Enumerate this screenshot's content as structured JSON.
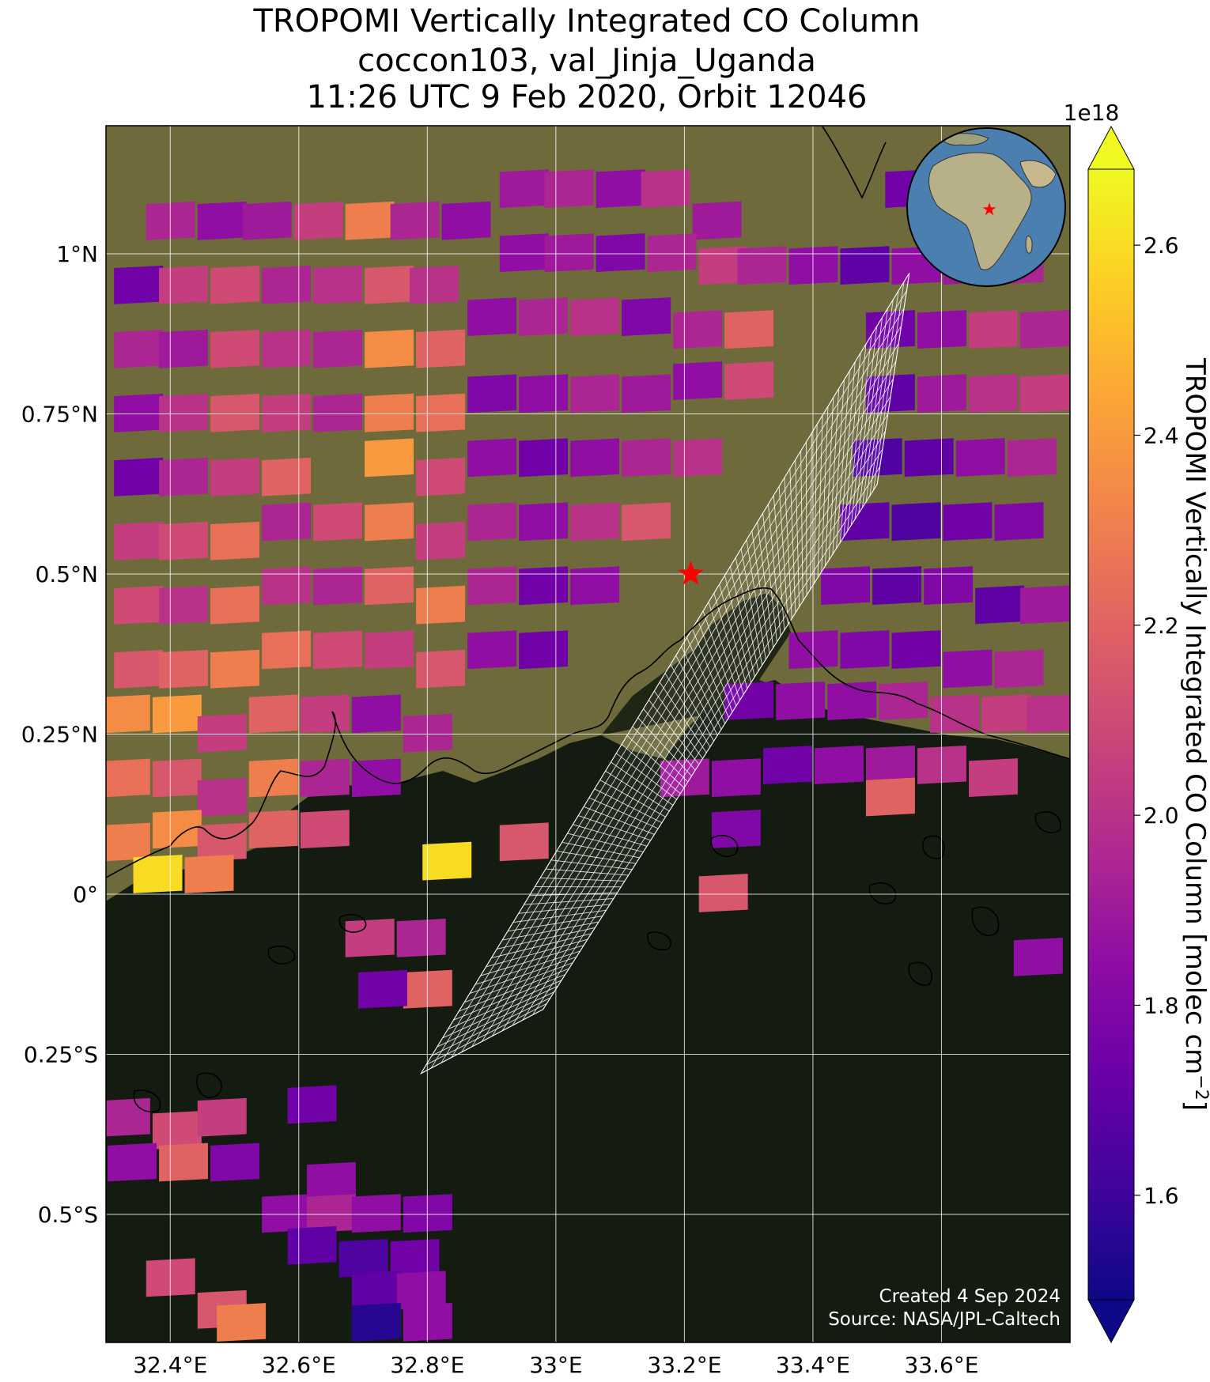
{
  "title": {
    "line1": "TROPOMI Vertically Integrated CO Column",
    "line2": "coccon103, val_Jinja_Uganda",
    "line3": "11:26 UTC 9 Feb 2020, Orbit 12046"
  },
  "map": {
    "lon_range": [
      32.3,
      33.8
    ],
    "lat_range": [
      -0.7,
      1.2
    ],
    "lon_ticks": [
      {
        "value": 32.4,
        "label": "32.4°E"
      },
      {
        "value": 32.6,
        "label": "32.6°E"
      },
      {
        "value": 32.8,
        "label": "32.8°E"
      },
      {
        "value": 33.0,
        "label": "33°E"
      },
      {
        "value": 33.2,
        "label": "33.2°E"
      },
      {
        "value": 33.4,
        "label": "33.4°E"
      },
      {
        "value": 33.6,
        "label": "33.6°E"
      }
    ],
    "lat_ticks": [
      {
        "value": 1.0,
        "label": "1°N"
      },
      {
        "value": 0.75,
        "label": "0.75°N"
      },
      {
        "value": 0.5,
        "label": "0.5°N"
      },
      {
        "value": 0.25,
        "label": "0.25°N"
      },
      {
        "value": 0.0,
        "label": "0°"
      },
      {
        "value": -0.25,
        "label": "0.25°S"
      },
      {
        "value": -0.5,
        "label": "0.5°S"
      }
    ],
    "site": {
      "name": "val_Jinja_Uganda",
      "lon": 33.21,
      "lat": 0.5
    },
    "colors": {
      "land": "#6e6a3c",
      "lake": "#141c12",
      "grid": "#ffffff",
      "marker": "#ff0000"
    }
  },
  "credits": {
    "line1": "Created 4 Sep 2024",
    "line2": "Source: NASA/JPL-Caltech"
  },
  "colorbar": {
    "label": "TROPOMI Vertically Integrated CO Column [molec cm",
    "label_sup": "−2",
    "label_end": "]",
    "exponent": "1e18",
    "range": [
      1.49,
      2.68
    ],
    "colormap": "plasma",
    "ticks": [
      {
        "value": 1.6,
        "label": "1.6"
      },
      {
        "value": 1.8,
        "label": "1.8"
      },
      {
        "value": 2.0,
        "label": "2.0"
      },
      {
        "value": 2.2,
        "label": "2.2"
      },
      {
        "value": 2.4,
        "label": "2.4"
      },
      {
        "value": 2.6,
        "label": "2.6"
      }
    ]
  },
  "chart_data": {
    "type": "heatmap",
    "title": "TROPOMI Vertically Integrated CO Column",
    "xlabel": "",
    "ylabel": "",
    "xlim": [
      32.3,
      33.8
    ],
    "ylim": [
      -0.7,
      1.2
    ],
    "x_step": 0.075,
    "y_step": 0.055,
    "value_units": "1e18 molec cm−2",
    "cells": [
      [
        32.4,
        1.05,
        1.95
      ],
      [
        32.48,
        1.05,
        1.85
      ],
      [
        32.55,
        1.05,
        1.9
      ],
      [
        32.63,
        1.05,
        2.05
      ],
      [
        32.71,
        1.05,
        2.3
      ],
      [
        32.78,
        1.05,
        1.95
      ],
      [
        32.86,
        1.05,
        1.85
      ],
      [
        32.95,
        1.1,
        1.9
      ],
      [
        33.02,
        1.1,
        1.95
      ],
      [
        33.1,
        1.1,
        1.85
      ],
      [
        33.17,
        1.1,
        2.0
      ],
      [
        33.25,
        1.05,
        1.9
      ],
      [
        33.55,
        1.1,
        1.75
      ],
      [
        32.35,
        0.95,
        1.75
      ],
      [
        32.42,
        0.95,
        2.05
      ],
      [
        32.5,
        0.95,
        2.1
      ],
      [
        32.58,
        0.95,
        1.95
      ],
      [
        32.66,
        0.95,
        2.0
      ],
      [
        32.74,
        0.95,
        2.15
      ],
      [
        32.81,
        0.95,
        2.0
      ],
      [
        32.95,
        1.0,
        1.85
      ],
      [
        33.02,
        1.0,
        1.9
      ],
      [
        33.1,
        1.0,
        1.8
      ],
      [
        33.18,
        1.0,
        1.95
      ],
      [
        33.26,
        0.98,
        2.05
      ],
      [
        33.32,
        0.98,
        1.95
      ],
      [
        33.4,
        0.98,
        1.85
      ],
      [
        33.48,
        0.98,
        1.7
      ],
      [
        33.56,
        0.98,
        1.85
      ],
      [
        33.64,
        0.98,
        1.9
      ],
      [
        33.72,
        0.98,
        1.95
      ],
      [
        32.35,
        0.85,
        1.95
      ],
      [
        32.42,
        0.85,
        1.9
      ],
      [
        32.5,
        0.85,
        2.1
      ],
      [
        32.58,
        0.85,
        2.0
      ],
      [
        32.66,
        0.85,
        1.95
      ],
      [
        32.74,
        0.85,
        2.35
      ],
      [
        32.82,
        0.85,
        2.2
      ],
      [
        32.9,
        0.9,
        1.85
      ],
      [
        32.98,
        0.9,
        1.95
      ],
      [
        33.06,
        0.9,
        2.0
      ],
      [
        33.14,
        0.9,
        1.8
      ],
      [
        33.22,
        0.88,
        1.95
      ],
      [
        33.3,
        0.88,
        2.2
      ],
      [
        33.52,
        0.88,
        1.75
      ],
      [
        33.6,
        0.88,
        1.85
      ],
      [
        33.68,
        0.88,
        2.05
      ],
      [
        33.76,
        0.88,
        1.95
      ],
      [
        32.35,
        0.75,
        1.85
      ],
      [
        32.42,
        0.75,
        2.0
      ],
      [
        32.5,
        0.75,
        2.15
      ],
      [
        32.58,
        0.75,
        2.05
      ],
      [
        32.66,
        0.75,
        1.95
      ],
      [
        32.74,
        0.75,
        2.3
      ],
      [
        32.82,
        0.75,
        2.25
      ],
      [
        32.9,
        0.78,
        1.8
      ],
      [
        32.98,
        0.78,
        1.85
      ],
      [
        33.06,
        0.78,
        1.95
      ],
      [
        33.14,
        0.78,
        1.9
      ],
      [
        33.22,
        0.8,
        1.85
      ],
      [
        33.3,
        0.8,
        2.1
      ],
      [
        33.52,
        0.78,
        1.7
      ],
      [
        33.6,
        0.78,
        1.9
      ],
      [
        33.68,
        0.78,
        2.0
      ],
      [
        33.76,
        0.78,
        2.05
      ],
      [
        32.35,
        0.65,
        1.75
      ],
      [
        32.42,
        0.65,
        1.95
      ],
      [
        32.5,
        0.65,
        2.05
      ],
      [
        32.58,
        0.65,
        2.2
      ],
      [
        32.74,
        0.68,
        2.4
      ],
      [
        32.82,
        0.65,
        2.1
      ],
      [
        32.9,
        0.68,
        1.85
      ],
      [
        32.98,
        0.68,
        1.75
      ],
      [
        33.06,
        0.68,
        1.85
      ],
      [
        33.14,
        0.68,
        1.95
      ],
      [
        33.22,
        0.68,
        2.0
      ],
      [
        33.5,
        0.68,
        1.65
      ],
      [
        33.58,
        0.68,
        1.7
      ],
      [
        33.66,
        0.68,
        1.85
      ],
      [
        33.74,
        0.68,
        1.95
      ],
      [
        32.35,
        0.55,
        2.05
      ],
      [
        32.42,
        0.55,
        2.1
      ],
      [
        32.5,
        0.55,
        2.25
      ],
      [
        32.58,
        0.58,
        1.95
      ],
      [
        32.66,
        0.58,
        2.1
      ],
      [
        32.74,
        0.58,
        2.3
      ],
      [
        32.82,
        0.55,
        2.05
      ],
      [
        32.9,
        0.58,
        1.95
      ],
      [
        32.98,
        0.58,
        1.85
      ],
      [
        33.06,
        0.58,
        2.0
      ],
      [
        33.14,
        0.58,
        2.15
      ],
      [
        33.48,
        0.58,
        1.7
      ],
      [
        33.56,
        0.58,
        1.65
      ],
      [
        33.64,
        0.58,
        1.75
      ],
      [
        33.72,
        0.58,
        1.8
      ],
      [
        32.35,
        0.45,
        2.1
      ],
      [
        32.42,
        0.45,
        2.0
      ],
      [
        32.5,
        0.45,
        2.25
      ],
      [
        32.58,
        0.48,
        2.0
      ],
      [
        32.66,
        0.48,
        1.95
      ],
      [
        32.74,
        0.48,
        2.2
      ],
      [
        32.82,
        0.45,
        2.3
      ],
      [
        32.9,
        0.48,
        1.95
      ],
      [
        32.98,
        0.48,
        1.75
      ],
      [
        33.06,
        0.48,
        1.85
      ],
      [
        33.45,
        0.48,
        1.8
      ],
      [
        33.53,
        0.48,
        1.7
      ],
      [
        33.61,
        0.48,
        1.8
      ],
      [
        33.69,
        0.45,
        1.7
      ],
      [
        33.76,
        0.45,
        1.9
      ],
      [
        32.35,
        0.35,
        2.15
      ],
      [
        32.42,
        0.35,
        2.2
      ],
      [
        32.5,
        0.35,
        2.3
      ],
      [
        32.58,
        0.38,
        2.25
      ],
      [
        32.66,
        0.38,
        2.1
      ],
      [
        32.74,
        0.38,
        2.05
      ],
      [
        32.82,
        0.35,
        2.15
      ],
      [
        32.9,
        0.38,
        1.85
      ],
      [
        32.98,
        0.38,
        1.75
      ],
      [
        33.4,
        0.38,
        1.85
      ],
      [
        33.48,
        0.38,
        1.8
      ],
      [
        33.56,
        0.38,
        1.75
      ],
      [
        33.64,
        0.35,
        1.85
      ],
      [
        33.72,
        0.35,
        1.95
      ],
      [
        32.33,
        0.28,
        2.35
      ],
      [
        32.41,
        0.28,
        2.4
      ],
      [
        32.48,
        0.25,
        2.05
      ],
      [
        32.56,
        0.28,
        2.2
      ],
      [
        32.64,
        0.28,
        2.05
      ],
      [
        32.72,
        0.28,
        1.85
      ],
      [
        32.8,
        0.25,
        1.95
      ],
      [
        33.3,
        0.3,
        1.75
      ],
      [
        33.38,
        0.3,
        1.85
      ],
      [
        33.46,
        0.3,
        1.85
      ],
      [
        33.54,
        0.3,
        1.95
      ],
      [
        33.62,
        0.28,
        2.0
      ],
      [
        33.7,
        0.28,
        2.05
      ],
      [
        33.77,
        0.28,
        2.0
      ],
      [
        32.33,
        0.18,
        2.25
      ],
      [
        32.41,
        0.18,
        2.15
      ],
      [
        32.48,
        0.15,
        2.0
      ],
      [
        32.56,
        0.18,
        2.3
      ],
      [
        32.64,
        0.18,
        1.95
      ],
      [
        32.72,
        0.18,
        1.85
      ],
      [
        33.2,
        0.18,
        1.9
      ],
      [
        33.28,
        0.18,
        1.85
      ],
      [
        33.36,
        0.2,
        1.75
      ],
      [
        33.44,
        0.2,
        1.85
      ],
      [
        33.52,
        0.2,
        1.9
      ],
      [
        33.6,
        0.2,
        2.0
      ],
      [
        33.68,
        0.18,
        2.05
      ],
      [
        32.33,
        0.08,
        2.3
      ],
      [
        32.41,
        0.1,
        2.35
      ],
      [
        32.48,
        0.08,
        2.15
      ],
      [
        32.56,
        0.1,
        2.2
      ],
      [
        32.64,
        0.1,
        2.1
      ],
      [
        33.28,
        0.1,
        1.8
      ],
      [
        33.52,
        0.15,
        2.2
      ],
      [
        32.38,
        0.03,
        2.6
      ],
      [
        32.46,
        0.03,
        2.3
      ],
      [
        32.83,
        0.05,
        2.6
      ],
      [
        32.95,
        0.08,
        2.15
      ],
      [
        33.26,
        0.0,
        2.15
      ],
      [
        32.71,
        -0.07,
        2.05
      ],
      [
        32.79,
        -0.07,
        1.95
      ],
      [
        32.8,
        -0.15,
        2.2
      ],
      [
        32.73,
        -0.15,
        1.75
      ],
      [
        33.75,
        -0.1,
        1.85
      ],
      [
        32.33,
        -0.35,
        1.95
      ],
      [
        32.41,
        -0.37,
        2.1
      ],
      [
        32.48,
        -0.35,
        2.05
      ],
      [
        32.34,
        -0.42,
        1.85
      ],
      [
        32.42,
        -0.42,
        2.2
      ],
      [
        32.5,
        -0.42,
        1.8
      ],
      [
        32.62,
        -0.33,
        1.75
      ],
      [
        32.65,
        -0.45,
        1.85
      ],
      [
        32.58,
        -0.5,
        1.85
      ],
      [
        32.65,
        -0.5,
        1.95
      ],
      [
        32.72,
        -0.5,
        1.85
      ],
      [
        32.8,
        -0.5,
        1.8
      ],
      [
        32.62,
        -0.55,
        1.7
      ],
      [
        32.7,
        -0.57,
        1.65
      ],
      [
        32.78,
        -0.57,
        1.75
      ],
      [
        32.72,
        -0.62,
        1.7
      ],
      [
        32.79,
        -0.62,
        1.85
      ],
      [
        32.72,
        -0.67,
        1.55
      ],
      [
        32.8,
        -0.67,
        1.85
      ],
      [
        32.4,
        -0.6,
        2.1
      ],
      [
        32.48,
        -0.65,
        2.15
      ],
      [
        32.51,
        -0.67,
        2.3
      ]
    ],
    "swath_corners": [
      [
        33.55,
        0.97
      ],
      [
        32.79,
        -0.28
      ],
      [
        32.98,
        -0.18
      ],
      [
        33.5,
        0.64
      ]
    ]
  }
}
